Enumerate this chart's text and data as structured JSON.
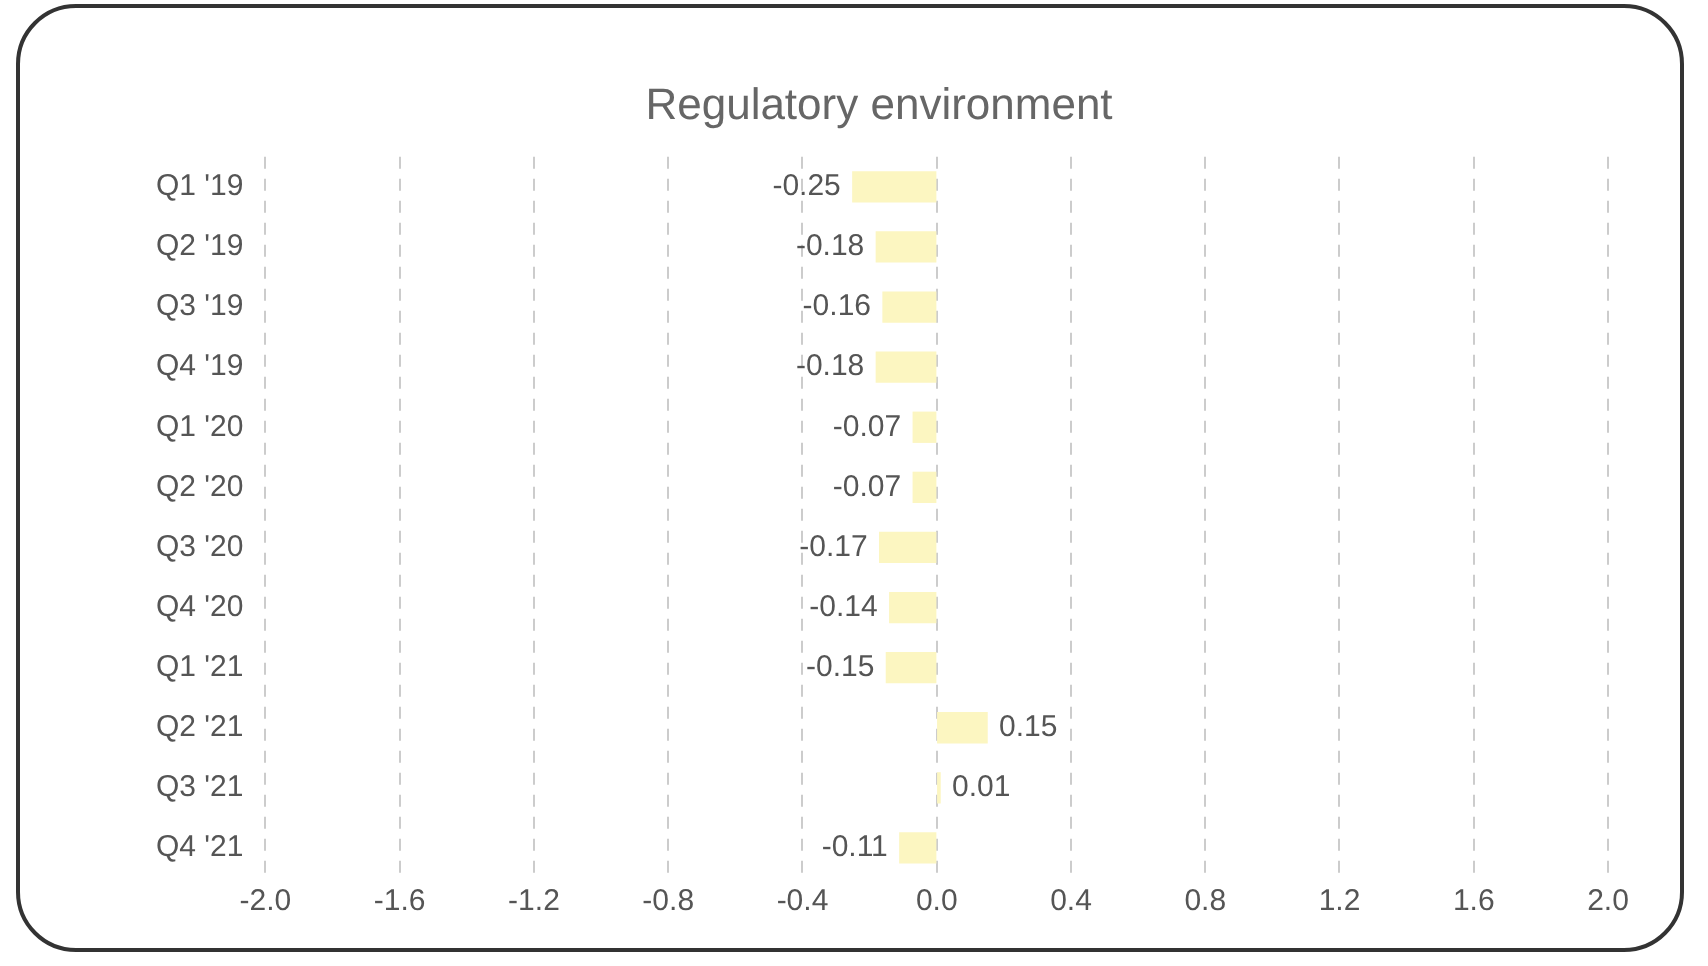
{
  "chart_data": {
    "type": "bar",
    "orientation": "horizontal",
    "title": "Regulatory environment",
    "categories": [
      "Q1 '19",
      "Q2 '19",
      "Q3 '19",
      "Q4 '19",
      "Q1 '20",
      "Q2 '20",
      "Q3 '20",
      "Q4 '20",
      "Q1 '21",
      "Q2 '21",
      "Q3 '21",
      "Q4 '21"
    ],
    "values": [
      -0.25,
      -0.18,
      -0.16,
      -0.18,
      -0.07,
      -0.07,
      -0.17,
      -0.14,
      -0.15,
      0.15,
      0.01,
      -0.11
    ],
    "color": "#fcf6c1",
    "xlim": [
      -2,
      2
    ],
    "xticks": [
      {
        "value": -2,
        "label": "-2.0"
      },
      {
        "value": -1.6,
        "label": "-1.6"
      },
      {
        "value": -1.2,
        "label": "-1.2"
      },
      {
        "value": -0.8,
        "label": "-0.8"
      },
      {
        "value": -0.4,
        "label": "-0.4"
      },
      {
        "value": 0,
        "label": "0.0"
      },
      {
        "value": 0.4,
        "label": "0.4"
      },
      {
        "value": 0.8,
        "label": "0.8"
      },
      {
        "value": 1.2,
        "label": "1.2"
      },
      {
        "value": 1.6,
        "label": "1.6"
      },
      {
        "value": 2,
        "label": "2.0"
      }
    ],
    "grid": "x",
    "data_labels": true
  }
}
